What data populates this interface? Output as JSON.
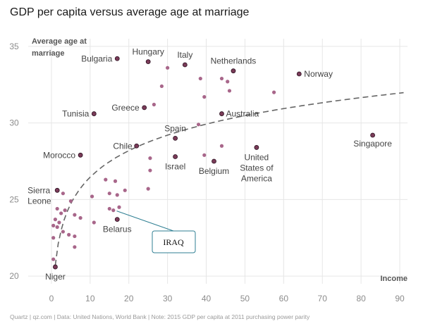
{
  "title": "GDP per capita versus average age at marriage",
  "footer": "Quartz | qz.com | Data: United Nations, World Bank | Note: 2015 GDP per capita at 2011 purchasing power parity",
  "annotation": {
    "text": "IRAQ"
  },
  "colors": {
    "labeled_point": "#7a3b58",
    "unlabeled_point": "#a8668a",
    "trend": "#666666",
    "grid": "#e6e6e6",
    "annotation_border": "#2f7f93"
  },
  "chart_data": {
    "type": "scatter",
    "title": "GDP per capita versus average age at marriage",
    "xlabel": "Income",
    "ylabel": "Average age at marriage",
    "xlim": [
      -6,
      92
    ],
    "ylim": [
      19.5,
      35.5
    ],
    "xticks": [
      0,
      10,
      20,
      30,
      40,
      50,
      60,
      70,
      80,
      90
    ],
    "yticks": [
      20,
      25,
      30,
      35
    ],
    "grid": true,
    "trend_line": "logarithmic, dashed",
    "labeled_points": [
      {
        "label": "Bulgaria",
        "x": 17,
        "y": 34.2
      },
      {
        "label": "Hungary",
        "x": 25,
        "y": 34.0
      },
      {
        "label": "Italy",
        "x": 34.5,
        "y": 33.8
      },
      {
        "label": "Netherlands",
        "x": 47,
        "y": 33.4
      },
      {
        "label": "Norway",
        "x": 64,
        "y": 33.2
      },
      {
        "label": "Tunisia",
        "x": 11,
        "y": 30.6
      },
      {
        "label": "Greece",
        "x": 24,
        "y": 31.0
      },
      {
        "label": "Australia",
        "x": 44,
        "y": 30.6
      },
      {
        "label": "Spain",
        "x": 32,
        "y": 29.0
      },
      {
        "label": "Singapore",
        "x": 83,
        "y": 29.2
      },
      {
        "label": "Chile",
        "x": 22,
        "y": 28.5
      },
      {
        "label": "Morocco",
        "x": 7.5,
        "y": 27.9
      },
      {
        "label": "Israel",
        "x": 32,
        "y": 27.8
      },
      {
        "label": "Belgium",
        "x": 42,
        "y": 27.5
      },
      {
        "label": "United States of America",
        "x": 53,
        "y": 28.4
      },
      {
        "label": "Sierra Leone",
        "x": 1.5,
        "y": 25.6
      },
      {
        "label": "Belarus",
        "x": 17,
        "y": 23.7
      },
      {
        "label": "Niger",
        "x": 1,
        "y": 20.6
      }
    ],
    "unlabeled_points": [
      {
        "x": 30,
        "y": 33.6
      },
      {
        "x": 28.5,
        "y": 32.4
      },
      {
        "x": 38.5,
        "y": 32.9
      },
      {
        "x": 44,
        "y": 32.9
      },
      {
        "x": 45.5,
        "y": 32.7
      },
      {
        "x": 46,
        "y": 32.1
      },
      {
        "x": 57.5,
        "y": 32.0
      },
      {
        "x": 39.5,
        "y": 31.7
      },
      {
        "x": 26.5,
        "y": 31.2
      },
      {
        "x": 38,
        "y": 29.9
      },
      {
        "x": 44,
        "y": 28.5
      },
      {
        "x": 39.5,
        "y": 27.9
      },
      {
        "x": 25.5,
        "y": 27.7
      },
      {
        "x": 25.5,
        "y": 26.9
      },
      {
        "x": 14,
        "y": 26.3
      },
      {
        "x": 16.5,
        "y": 26.2
      },
      {
        "x": 25,
        "y": 25.7
      },
      {
        "x": 19,
        "y": 25.6
      },
      {
        "x": 15,
        "y": 25.4
      },
      {
        "x": 17,
        "y": 25.3
      },
      {
        "x": 10.5,
        "y": 25.2
      },
      {
        "x": 3,
        "y": 25.4
      },
      {
        "x": 5,
        "y": 24.9
      },
      {
        "x": 15,
        "y": 24.4
      },
      {
        "x": 16,
        "y": 24.3
      },
      {
        "x": 17.5,
        "y": 24.5
      },
      {
        "x": 1.5,
        "y": 24.4
      },
      {
        "x": 2.5,
        "y": 24.1
      },
      {
        "x": 3.5,
        "y": 24.3
      },
      {
        "x": 6,
        "y": 24.0
      },
      {
        "x": 7.5,
        "y": 23.8
      },
      {
        "x": 1,
        "y": 23.7
      },
      {
        "x": 2,
        "y": 23.5
      },
      {
        "x": 11,
        "y": 23.5
      },
      {
        "x": 0.5,
        "y": 23.3
      },
      {
        "x": 1.5,
        "y": 23.2
      },
      {
        "x": 3,
        "y": 22.9
      },
      {
        "x": 4.5,
        "y": 22.7
      },
      {
        "x": 6,
        "y": 22.6
      },
      {
        "x": 0.5,
        "y": 22.5
      },
      {
        "x": 6,
        "y": 21.9
      },
      {
        "x": 0.5,
        "y": 21.1
      }
    ],
    "annotation_target": {
      "x": 16.5,
      "y": 24.3
    }
  }
}
